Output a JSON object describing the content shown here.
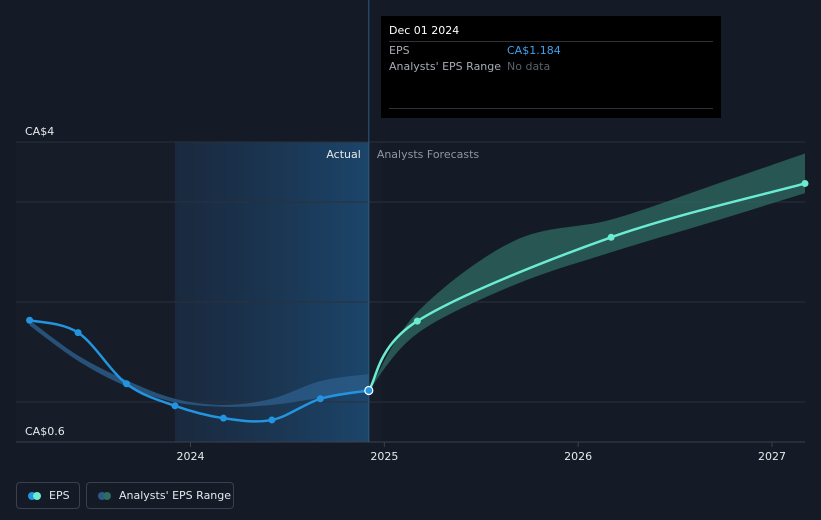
{
  "tooltip": {
    "date": "Dec 01 2024",
    "eps_label": "EPS",
    "eps_value": "CA$1.184",
    "range_label": "Analysts' EPS Range",
    "range_value": "No data"
  },
  "legend": {
    "eps": "EPS",
    "range": "Analysts' EPS Range"
  },
  "colors": {
    "background": "#151b26",
    "actual_line": "#2394df",
    "forecast_line": "#6cebd3",
    "forecast_band": "#2d6b63",
    "actual_band": "#2a5a86",
    "tooltip_eps": "#3ea1ef"
  },
  "chart_data": {
    "type": "line",
    "y_labels": {
      "top": "CA$4",
      "bottom": "CA$0.6"
    },
    "ylim": [
      0.6,
      4
    ],
    "xlim": [
      2023.1,
      2027.17
    ],
    "x_ticks": [
      {
        "value": 2024,
        "label": "2024"
      },
      {
        "value": 2025,
        "label": "2025"
      },
      {
        "value": 2026,
        "label": "2026"
      },
      {
        "value": 2027,
        "label": "2027"
      }
    ],
    "divider_x": 2024.92,
    "highlight_start_x": 2023.92,
    "section_labels": {
      "actual": "Actual",
      "forecast": "Analysts Forecasts"
    },
    "grid": true,
    "series": [
      {
        "name": "EPS",
        "kind": "actual",
        "points": [
          {
            "x": 2023.17,
            "y": 1.98
          },
          {
            "x": 2023.42,
            "y": 1.84
          },
          {
            "x": 2023.67,
            "y": 1.26
          },
          {
            "x": 2023.92,
            "y": 1.01
          },
          {
            "x": 2024.17,
            "y": 0.87
          },
          {
            "x": 2024.42,
            "y": 0.85
          },
          {
            "x": 2024.67,
            "y": 1.09
          },
          {
            "x": 2024.92,
            "y": 1.184
          }
        ]
      },
      {
        "name": "EPS",
        "kind": "forecast",
        "points": [
          {
            "x": 2024.92,
            "y": 1.184
          },
          {
            "x": 2025.17,
            "y": 1.97
          },
          {
            "x": 2026.17,
            "y": 2.92
          },
          {
            "x": 2027.17,
            "y": 3.53
          }
        ]
      }
    ],
    "bands": [
      {
        "kind": "actual",
        "points": [
          {
            "x": 2023.17,
            "low": 1.92,
            "high": 1.98
          },
          {
            "x": 2023.42,
            "low": 1.52,
            "high": 1.58
          },
          {
            "x": 2023.67,
            "low": 1.23,
            "high": 1.3
          },
          {
            "x": 2023.92,
            "low": 1.05,
            "high": 1.09
          },
          {
            "x": 2024.17,
            "low": 1.0,
            "high": 1.02
          },
          {
            "x": 2024.42,
            "low": 1.02,
            "high": 1.09
          },
          {
            "x": 2024.67,
            "low": 1.1,
            "high": 1.29
          },
          {
            "x": 2024.92,
            "low": 1.184,
            "high": 1.37
          }
        ]
      },
      {
        "kind": "forecast",
        "points": [
          {
            "x": 2024.92,
            "low": 1.184,
            "high": 1.184
          },
          {
            "x": 2025.17,
            "low": 1.83,
            "high": 2.07
          },
          {
            "x": 2025.67,
            "low": 2.38,
            "high": 2.88
          },
          {
            "x": 2026.17,
            "low": 2.75,
            "high": 3.12
          },
          {
            "x": 2026.67,
            "low": 3.08,
            "high": 3.49
          },
          {
            "x": 2027.17,
            "low": 3.42,
            "high": 3.87
          }
        ]
      }
    ]
  }
}
